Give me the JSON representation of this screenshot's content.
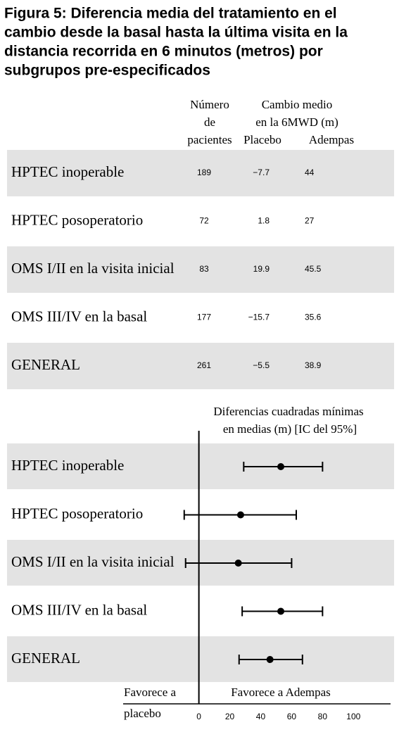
{
  "title_lines": [
    "Figura 5: Diferencia media del tratamiento en el",
    "cambio desde la basal hasta la última visita en la",
    "distancia recorrida en 6 minutos (metros) por",
    "subgrupos pre-especificados"
  ],
  "table": {
    "header_n": [
      "Número",
      "de",
      "pacientes"
    ],
    "header_change": [
      "Cambio medio",
      "en la 6MWD (m)"
    ],
    "header_placebo": "Placebo",
    "header_adempas": "Adempas",
    "rows": [
      [
        "HPTEC inoperable",
        "189",
        "−7.7",
        "44"
      ],
      [
        "HPTEC posoperatorio",
        "72",
        "1.8",
        "27"
      ],
      [
        "OMS I/II en la visita inicial",
        "83",
        "19.9",
        "45.5"
      ],
      [
        "OMS III/IV en la basal",
        "177",
        "−15.7",
        "35.6"
      ],
      [
        "GENERAL",
        "261",
        "−5.5",
        "38.9"
      ]
    ]
  },
  "chart_data": {
    "type": "forest",
    "title_lines": [
      "Diferencias cuadradas mínimas",
      "en medias (m) [IC del 95%]"
    ],
    "categories": [
      "HPTEC inoperable",
      "HPTEC posoperatorio",
      "OMS I/II en la visita inicial",
      "OMS III/IV en la basal",
      "GENERAL"
    ],
    "values": [
      53,
      27,
      25.5,
      53,
      46
    ],
    "lower": [
      29,
      -9.5,
      -8.6,
      28,
      26
    ],
    "upper": [
      80,
      63,
      60,
      80,
      67
    ],
    "xlim": [
      -49,
      124
    ],
    "xticks": [
      0,
      20,
      40,
      60,
      80,
      100
    ],
    "left_label_lines": [
      "Favorece a",
      "placebo"
    ],
    "right_label": "Favorece a Adempas",
    "color": "#000000",
    "band_color": "#e3e3e3"
  }
}
